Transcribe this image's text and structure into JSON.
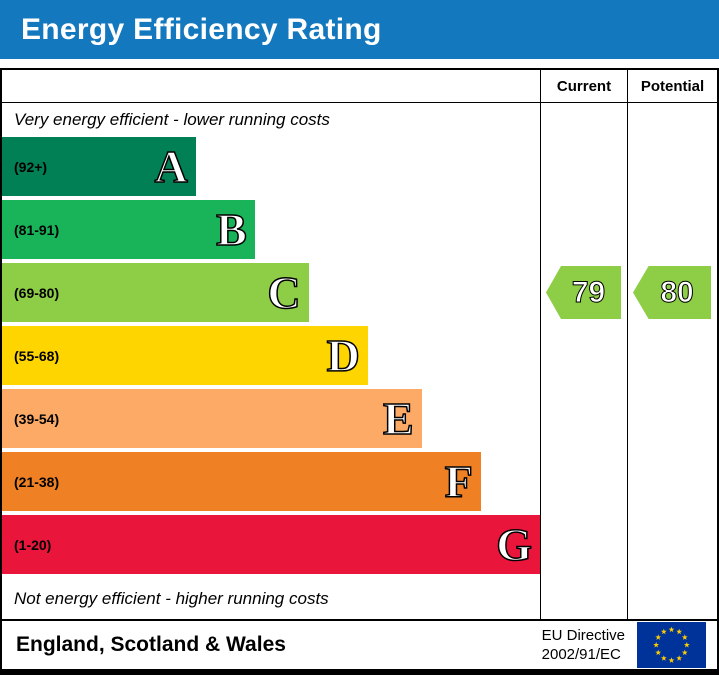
{
  "header": {
    "title": "Energy Efficiency Rating",
    "bg_color": "#1478be"
  },
  "chart": {
    "columns": [
      "Current",
      "Potential"
    ],
    "top_caption": "Very energy efficient - lower running costs",
    "bottom_caption": "Not energy efficient - higher running costs"
  },
  "chart_data": {
    "type": "bar",
    "title": "Energy Efficiency Rating",
    "bands": [
      {
        "letter": "A",
        "range_label": "(92+)",
        "min": 92,
        "max": 100,
        "color": "#008054",
        "width_pct": 36
      },
      {
        "letter": "B",
        "range_label": "(81-91)",
        "min": 81,
        "max": 91,
        "color": "#19b459",
        "width_pct": 47
      },
      {
        "letter": "C",
        "range_label": "(69-80)",
        "min": 69,
        "max": 80,
        "color": "#8dce46",
        "width_pct": 57
      },
      {
        "letter": "D",
        "range_label": "(55-68)",
        "min": 55,
        "max": 68,
        "color": "#ffd500",
        "width_pct": 68
      },
      {
        "letter": "E",
        "range_label": "(39-54)",
        "min": 39,
        "max": 54,
        "color": "#fcaa65",
        "width_pct": 78
      },
      {
        "letter": "F",
        "range_label": "(21-38)",
        "min": 21,
        "max": 38,
        "color": "#ef8023",
        "width_pct": 89
      },
      {
        "letter": "G",
        "range_label": "(1-20)",
        "min": 1,
        "max": 20,
        "color": "#e9153b",
        "width_pct": 100
      }
    ],
    "current": {
      "value": 79,
      "band": "C",
      "color": "#8dce46"
    },
    "potential": {
      "value": 80,
      "band": "C",
      "color": "#8dce46"
    }
  },
  "footer": {
    "region": "England, Scotland & Wales",
    "directive_line1": "EU Directive",
    "directive_line2": "2002/91/EC",
    "eu_flag_colors": {
      "field": "#003399",
      "stars": "#ffcc00"
    }
  }
}
